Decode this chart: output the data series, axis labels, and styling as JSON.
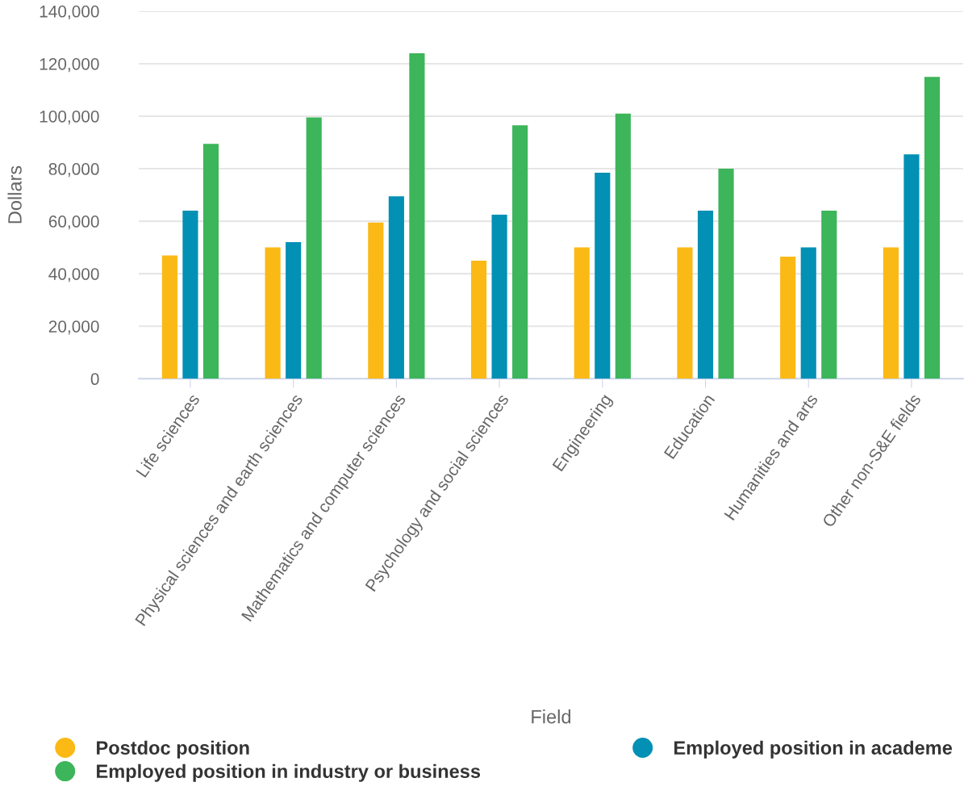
{
  "chart_data": {
    "type": "bar",
    "categories": [
      "Life sciences",
      "Physical sciences and earth sciences",
      "Mathematics and computer sciences",
      "Psychology and social sciences",
      "Engineering",
      "Education",
      "Humanities and arts",
      "Other non-S&E fields"
    ],
    "series": [
      {
        "name": "Postdoc position",
        "color": "#fbb916",
        "values": [
          47000,
          50000,
          59500,
          45000,
          50000,
          50000,
          46500,
          50000
        ]
      },
      {
        "name": "Employed position in academe",
        "color": "#0290b4",
        "values": [
          64000,
          52000,
          69500,
          62500,
          78500,
          64000,
          50000,
          85500
        ]
      },
      {
        "name": "Employed position in industry or business",
        "color": "#3db55a",
        "values": [
          89500,
          99500,
          124000,
          96500,
          101000,
          80000,
          64000,
          115000
        ]
      }
    ],
    "xlabel": "Field",
    "ylabel": "Dollars",
    "ylim": [
      0,
      140000
    ],
    "yticks": [
      {
        "value": 0,
        "label": "0"
      },
      {
        "value": 20000,
        "label": "20,000"
      },
      {
        "value": 40000,
        "label": "40,000"
      },
      {
        "value": 60000,
        "label": "60,000"
      },
      {
        "value": 80000,
        "label": "80,000"
      },
      {
        "value": 100000,
        "label": "100,000"
      },
      {
        "value": 120000,
        "label": "120,000"
      },
      {
        "value": 140000,
        "label": "140,000"
      }
    ],
    "grid": "y",
    "legend": "bottom"
  }
}
